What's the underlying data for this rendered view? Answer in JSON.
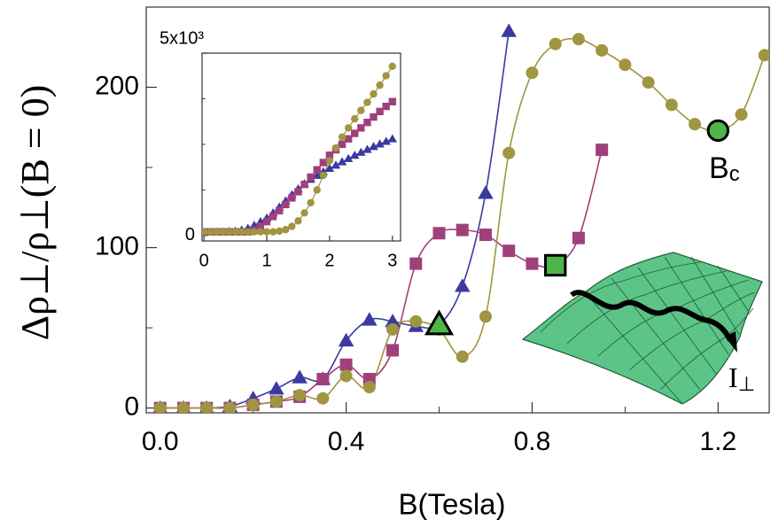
{
  "chart_data": [
    {
      "type": "line",
      "xlabel": "B(Tesla)",
      "ylabel": "Δρ⊥/ρ⊥(B = 0)",
      "xlim": [
        -0.03,
        1.31
      ],
      "ylim": [
        -3,
        250
      ],
      "xticks": [
        {
          "value": 0,
          "label": "0.0"
        },
        0.4,
        0.8,
        1.2
      ],
      "xminor": [
        0.2,
        0.6,
        1.0
      ],
      "yticks": [
        0,
        100,
        200
      ],
      "yminor": [
        50,
        150
      ],
      "annotations": [
        {
          "text": "B",
          "sub": "c"
        },
        {
          "text": "I",
          "sub": "⊥"
        }
      ],
      "highlight_color": "#4fb548",
      "series": [
        {
          "color": "#3a3aa0",
          "marker": "triangle",
          "highlight": 12,
          "x": [
            0,
            0.05,
            0.1,
            0.15,
            0.2,
            0.25,
            0.3,
            0.35,
            0.4,
            0.45,
            0.5,
            0.55,
            0.6,
            0.65,
            0.7,
            0.75
          ],
          "values": [
            0,
            0,
            0,
            1,
            6,
            12,
            19,
            18,
            42,
            55,
            54,
            51,
            52,
            76,
            134,
            235
          ]
        },
        {
          "color": "#a0407a",
          "marker": "square",
          "highlight": 17,
          "x": [
            0,
            0.05,
            0.1,
            0.15,
            0.2,
            0.25,
            0.3,
            0.35,
            0.4,
            0.45,
            0.5,
            0.55,
            0.6,
            0.65,
            0.7,
            0.75,
            0.8,
            0.85,
            0.9,
            0.95
          ],
          "values": [
            0,
            0,
            0,
            0,
            2,
            4,
            7,
            18,
            27,
            18,
            36,
            90,
            109,
            111,
            108,
            98,
            90,
            89,
            106,
            161
          ]
        },
        {
          "color": "#a09540",
          "marker": "circle",
          "highlight": 24,
          "x": [
            0,
            0.05,
            0.1,
            0.15,
            0.2,
            0.25,
            0.3,
            0.35,
            0.4,
            0.45,
            0.5,
            0.55,
            0.6,
            0.65,
            0.7,
            0.75,
            0.8,
            0.85,
            0.9,
            0.95,
            1.0,
            1.05,
            1.1,
            1.15,
            1.2,
            1.25,
            1.3
          ],
          "values": [
            0,
            0,
            0,
            0,
            2,
            4,
            8,
            6,
            20,
            13,
            49,
            54,
            49,
            32,
            57,
            159,
            209,
            227,
            230,
            223,
            214,
            203,
            189,
            177,
            173,
            183,
            220
          ]
        }
      ]
    },
    {
      "type": "line",
      "xlim": [
        -0.03,
        3.13
      ],
      "ylim": [
        -150,
        5000
      ],
      "xticks": [
        0,
        1,
        2,
        3
      ],
      "yticks": [
        0,
        {
          "value": 5000,
          "label": "5x10³"
        }
      ],
      "yminor": [
        1250,
        2500,
        3750
      ],
      "series": [
        {
          "color": "#3a3aa0",
          "marker": "triangle",
          "x": [
            0,
            0.1,
            0.2,
            0.3,
            0.4,
            0.5,
            0.6,
            0.7,
            0.8,
            0.9,
            1.0,
            1.1,
            1.2,
            1.3,
            1.4,
            1.5,
            1.6,
            1.7,
            1.8,
            1.9,
            2.0,
            2.1,
            2.2,
            2.3,
            2.4,
            2.5,
            2.6,
            2.7,
            2.8,
            2.9,
            3.0
          ],
          "values": [
            100,
            100,
            100,
            100,
            110,
            120,
            150,
            200,
            280,
            380,
            480,
            620,
            780,
            950,
            1120,
            1280,
            1420,
            1540,
            1650,
            1750,
            1840,
            1930,
            2020,
            2110,
            2200,
            2280,
            2360,
            2440,
            2510,
            2580,
            2650
          ]
        },
        {
          "color": "#a0407a",
          "marker": "square",
          "x": [
            0,
            0.1,
            0.2,
            0.3,
            0.4,
            0.5,
            0.6,
            0.7,
            0.8,
            0.9,
            1.0,
            1.1,
            1.2,
            1.3,
            1.4,
            1.5,
            1.6,
            1.7,
            1.8,
            1.9,
            2.0,
            2.1,
            2.2,
            2.3,
            2.4,
            2.5,
            2.6,
            2.7,
            2.8,
            2.9,
            3.0
          ],
          "values": [
            100,
            100,
            100,
            100,
            100,
            100,
            100,
            100,
            150,
            250,
            380,
            520,
            680,
            850,
            1030,
            1200,
            1400,
            1600,
            1800,
            2000,
            2200,
            2350,
            2500,
            2650,
            2800,
            2950,
            3100,
            3250,
            3400,
            3540,
            3670
          ]
        },
        {
          "color": "#a09540",
          "marker": "circle",
          "x": [
            0,
            0.1,
            0.2,
            0.3,
            0.4,
            0.5,
            0.6,
            0.7,
            0.8,
            0.9,
            1.0,
            1.1,
            1.2,
            1.3,
            1.4,
            1.5,
            1.6,
            1.7,
            1.8,
            1.9,
            2.0,
            2.1,
            2.2,
            2.3,
            2.4,
            2.5,
            2.6,
            2.7,
            2.8,
            2.9,
            3.0
          ],
          "values": [
            100,
            100,
            100,
            100,
            100,
            100,
            100,
            100,
            100,
            100,
            100,
            100,
            120,
            160,
            250,
            400,
            620,
            900,
            1250,
            1650,
            2050,
            2400,
            2700,
            2950,
            3200,
            3430,
            3650,
            3880,
            4120,
            4380,
            4640
          ]
        }
      ]
    }
  ]
}
